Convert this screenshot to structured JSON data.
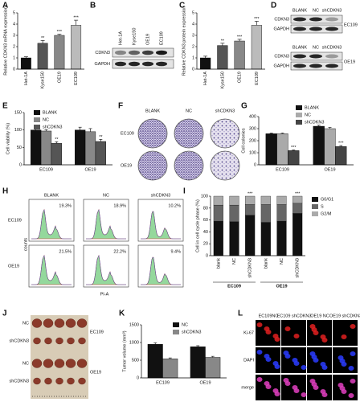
{
  "chart_data": [
    {
      "panel": "A",
      "type": "bar",
      "ylabel": "Relative CDKN3 mRNA expression",
      "categories": [
        "Het-1A",
        "Kyse150",
        "OE19",
        "EC109"
      ],
      "values": [
        1.0,
        2.3,
        3.0,
        3.9
      ],
      "errors": [
        0.1,
        0.25,
        0.1,
        0.45
      ],
      "annotations": [
        null,
        "**",
        "***",
        "***"
      ],
      "colors": [
        "#111111",
        "#555555",
        "#888888",
        "#bbbbbb"
      ],
      "ylim": [
        0,
        5
      ],
      "yticks": [
        0,
        1,
        2,
        3,
        4,
        5
      ]
    },
    {
      "panel": "C",
      "type": "bar",
      "ylabel": "Relative CDKN3 protein expression",
      "categories": [
        "Het-1A",
        "Kyse150",
        "OE19",
        "EC109"
      ],
      "values": [
        1.0,
        2.1,
        2.5,
        3.9
      ],
      "errors": [
        0.15,
        0.2,
        0.15,
        0.35
      ],
      "annotations": [
        null,
        "**",
        "***",
        "***"
      ],
      "colors": [
        "#111111",
        "#555555",
        "#888888",
        "#bbbbbb"
      ],
      "ylim": [
        0,
        5
      ],
      "yticks": [
        0,
        1,
        2,
        3,
        4,
        5
      ]
    },
    {
      "panel": "E",
      "type": "grouped_bar",
      "ylabel": "Cell viability (%)",
      "categories": [
        "EC109",
        "OE19"
      ],
      "series": [
        {
          "name": "BLANK",
          "color": "#111111",
          "values": [
            100,
            100
          ],
          "errors": [
            5,
            8
          ]
        },
        {
          "name": "NC",
          "color": "#888888",
          "values": [
            97,
            95
          ],
          "errors": [
            4,
            9
          ]
        },
        {
          "name": "shCDKN3",
          "color": "#555555",
          "values": [
            62,
            67
          ],
          "errors": [
            4,
            6
          ],
          "annotations": [
            "**",
            "**"
          ]
        }
      ],
      "ylim": [
        0,
        150
      ],
      "yticks": [
        0,
        50,
        100,
        150
      ]
    },
    {
      "panel": "G",
      "type": "grouped_bar",
      "ylabel": "Cell colonies",
      "categories": [
        "EC109",
        "OE19"
      ],
      "series": [
        {
          "name": "BLANK",
          "color": "#111111",
          "values": [
            258,
            320
          ],
          "errors": [
            5,
            8
          ]
        },
        {
          "name": "NC",
          "color": "#aaaaaa",
          "values": [
            258,
            300
          ],
          "errors": [
            6,
            10
          ]
        },
        {
          "name": "shCDKN3",
          "color": "#444444",
          "values": [
            118,
            152
          ],
          "errors": [
            5,
            8
          ],
          "annotations": [
            "***",
            "***"
          ]
        }
      ],
      "ylim": [
        0,
        400
      ],
      "yticks": [
        0,
        100,
        200,
        300,
        400
      ]
    },
    {
      "panel": "I",
      "type": "stacked_bar",
      "ylabel": "Cell in cell cycle phase (%)",
      "categories": [
        "blank",
        "NC",
        "shCDKN3",
        "blank",
        "NC",
        "shCDKN3"
      ],
      "groups": [
        "EC109",
        "OE19"
      ],
      "annotations": [
        null,
        null,
        "***",
        null,
        null,
        "***"
      ],
      "series": [
        {
          "name": "G0/G1",
          "color": "#111111",
          "values": [
            58,
            57,
            68,
            56,
            58,
            71
          ]
        },
        {
          "name": "S",
          "color": "#666666",
          "values": [
            27,
            28,
            18,
            30,
            28,
            17
          ]
        },
        {
          "name": "G2/M",
          "color": "#aaaaaa",
          "values": [
            15,
            15,
            14,
            14,
            14,
            12
          ]
        }
      ],
      "ylim": [
        0,
        100
      ],
      "yticks": [
        0,
        20,
        40,
        60,
        80,
        100
      ]
    },
    {
      "panel": "K",
      "type": "grouped_bar",
      "ylabel": "Tumor volume (mm³)",
      "categories": [
        "EC109",
        "OE19"
      ],
      "series": [
        {
          "name": "NC",
          "color": "#111111",
          "values": [
            950,
            880
          ],
          "errors": [
            40,
            30
          ]
        },
        {
          "name": "shCDKN3",
          "color": "#888888",
          "values": [
            540,
            580
          ],
          "errors": [
            25,
            30
          ]
        }
      ],
      "ylim": [
        0,
        1500
      ],
      "yticks": [
        0,
        500,
        1000,
        1500
      ]
    }
  ],
  "blot_b": {
    "letter": "B",
    "lanes": [
      "Het-1A",
      "Kyse150",
      "OE19",
      "EC109"
    ],
    "rows": [
      "CDKN3",
      "GAPDH"
    ]
  },
  "blot_d": {
    "letter": "D",
    "blots": [
      {
        "lanes": [
          "BLANK",
          "NC",
          "shCDKN3"
        ],
        "rows": [
          "CDKN3",
          "GAPDH"
        ],
        "cell_line": "EC109"
      },
      {
        "lanes": [
          "BLANK",
          "NC",
          "shCDKN3"
        ],
        "rows": [
          "CDKN3",
          "GAPDH"
        ],
        "cell_line": "OE19"
      }
    ]
  },
  "colonies_f": {
    "letter": "F",
    "columns": [
      "BLANK",
      "NC",
      "shCDKN3"
    ],
    "rows": [
      "EC109",
      "OE19"
    ]
  },
  "flow_h": {
    "letter": "H",
    "columns": [
      "BLANK",
      "NC",
      "shCDKN3"
    ],
    "rows": [
      "EC109",
      "OE19"
    ],
    "percentages": [
      [
        "19.3%",
        "18.9%",
        "10.2%"
      ],
      [
        "21.5%",
        "22.2%",
        "9.4%"
      ]
    ],
    "ylabel": "counts",
    "xlabel": "PI-A"
  },
  "tumors_j": {
    "letter": "J",
    "groups": [
      {
        "rows": [
          "NC",
          "shCDKN3"
        ],
        "cell_line": "EC109"
      },
      {
        "rows": [
          "NC",
          "shCDKN3"
        ],
        "cell_line": "OE19"
      }
    ]
  },
  "staining_l": {
    "letter": "L",
    "columns": [
      "EC109NC",
      "EC109 shCDKN3",
      "OE19 NC",
      "OE19 shCDKN3"
    ],
    "rows": [
      "Ki-67",
      "DAPI",
      "merge"
    ]
  }
}
